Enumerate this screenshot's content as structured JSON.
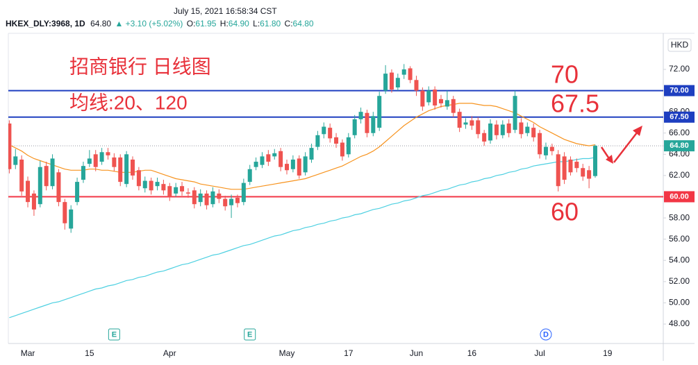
{
  "header": {
    "timestamp": "July 15, 2021 16:58:34 CST",
    "symbol": "HKEX_DLY:3968, 1D",
    "last": "64.80",
    "change": "▲ +3.10 (+5.02%)",
    "ohlc": [
      {
        "label": "O:",
        "value": "61.95"
      },
      {
        "label": "H:",
        "value": "64.90"
      },
      {
        "label": "L:",
        "value": "61.80"
      },
      {
        "label": "C:",
        "value": "64.80"
      }
    ]
  },
  "chart_data": {
    "type": "candlestick",
    "currency": "HKD",
    "categories": [
      null,
      null,
      null,
      "Mar",
      null,
      null,
      null,
      null,
      null,
      null,
      null,
      null,
      null,
      "15",
      null,
      null,
      null,
      null,
      null,
      null,
      null,
      null,
      null,
      null,
      null,
      null,
      "Apr",
      null,
      null,
      null,
      null,
      null,
      null,
      null,
      null,
      null,
      null,
      null,
      null,
      null,
      null,
      null,
      null,
      null,
      null,
      "May",
      null,
      null,
      null,
      null,
      null,
      null,
      null,
      null,
      null,
      "17",
      null,
      null,
      null,
      null,
      null,
      null,
      null,
      null,
      null,
      null,
      "Jun",
      null,
      null,
      null,
      null,
      null,
      null,
      null,
      null,
      "16",
      null,
      null,
      null,
      null,
      null,
      null,
      null,
      null,
      null,
      null,
      "Jul",
      null,
      null,
      null,
      null,
      null,
      null,
      null,
      null,
      null,
      null,
      "19"
    ],
    "open": [
      66.9,
      63.0,
      63.5,
      61.5,
      60.3,
      59.3,
      62.9,
      61.0,
      62.3,
      59.5,
      57.0,
      59.5,
      61.6,
      63.1,
      64.0,
      63.3,
      64.2,
      63.7,
      63.7,
      61.2,
      63.5,
      62.5,
      60.8,
      61.5,
      61.0,
      61.2,
      61.0,
      60.3,
      61.0,
      60.4,
      60.6,
      59.5,
      60.3,
      59.3,
      60.3,
      59.8,
      59.2,
      59.9,
      59.5,
      61.4,
      62.8,
      63.0,
      64.0,
      63.8,
      64.3,
      63.1,
      62.6,
      63.6,
      62.3,
      63.5,
      64.7,
      65.9,
      66.5,
      65.6,
      65.1,
      64.0,
      65.8,
      67.3,
      67.9,
      66.0,
      66.5,
      70.0,
      71.7,
      70.3,
      71.5,
      72.1,
      71.0,
      70.0,
      68.9,
      70.1,
      69.2,
      68.5,
      69.2,
      68.0,
      66.8,
      67.2,
      67.2,
      66.0,
      65.3,
      66.8,
      65.8,
      66.9,
      66.3,
      67.0,
      66.0,
      66.5,
      66.0,
      63.9,
      64.7,
      64.0,
      63.8,
      63.5,
      63.3,
      62.7,
      62.5,
      61.95,
      null,
      null
    ],
    "high": [
      67.2,
      64.5,
      63.9,
      61.9,
      60.6,
      63.4,
      63.3,
      64.0,
      62.6,
      59.8,
      59.2,
      61.8,
      63.3,
      64.4,
      64.4,
      64.6,
      64.6,
      64.1,
      64.0,
      64.3,
      63.8,
      62.8,
      61.9,
      61.8,
      61.8,
      61.6,
      61.3,
      61.3,
      61.4,
      60.8,
      60.9,
      60.7,
      60.6,
      60.9,
      60.7,
      60.1,
      60.2,
      60.2,
      61.7,
      63.0,
      63.7,
      64.2,
      64.4,
      64.5,
      64.6,
      63.5,
      63.9,
      63.9,
      64.2,
      65.0,
      66.2,
      67.0,
      66.9,
      66.0,
      65.4,
      66.0,
      67.7,
      68.4,
      68.2,
      68.0,
      69.9,
      72.4,
      72.0,
      71.6,
      72.5,
      72.3,
      71.4,
      70.3,
      70.4,
      70.4,
      69.6,
      70.0,
      69.5,
      68.3,
      67.4,
      67.6,
      67.5,
      66.3,
      67.3,
      67.2,
      67.2,
      67.3,
      70.0,
      67.4,
      67.0,
      66.9,
      66.3,
      65.1,
      65.0,
      64.4,
      64.2,
      63.8,
      63.6,
      63.1,
      62.9,
      64.9,
      null,
      null
    ],
    "low": [
      62.2,
      62.6,
      60.1,
      59.0,
      58.2,
      59.0,
      60.6,
      60.7,
      59.1,
      56.9,
      56.6,
      59.2,
      61.3,
      62.8,
      62.4,
      63.0,
      63.5,
      62.4,
      61.0,
      60.9,
      61.6,
      60.6,
      60.4,
      60.2,
      60.6,
      60.2,
      59.6,
      60.0,
      60.1,
      59.9,
      58.9,
      59.1,
      58.8,
      59.0,
      59.4,
      58.7,
      58.0,
      59.0,
      59.2,
      61.1,
      62.5,
      62.7,
      62.9,
      63.5,
      62.4,
      62.1,
      62.3,
      61.7,
      62.0,
      63.2,
      64.4,
      65.5,
      65.1,
      64.6,
      63.4,
      63.7,
      65.5,
      66.9,
      65.6,
      65.7,
      66.2,
      69.7,
      69.8,
      70.0,
      71.1,
      70.7,
      69.5,
      68.1,
      68.6,
      68.2,
      68.4,
      68.2,
      67.5,
      66.1,
      66.4,
      66.3,
      65.5,
      64.8,
      65.0,
      65.4,
      65.5,
      65.6,
      66.0,
      65.5,
      65.7,
      65.2,
      63.6,
      63.5,
      63.9,
      60.5,
      61.2,
      62.0,
      62.3,
      61.5,
      60.8,
      61.8,
      null,
      null
    ],
    "close": [
      62.6,
      63.8,
      60.5,
      59.5,
      58.8,
      62.8,
      61.0,
      63.6,
      59.5,
      57.5,
      58.8,
      61.4,
      62.9,
      63.6,
      62.8,
      64.2,
      63.9,
      62.8,
      61.4,
      64.0,
      62.0,
      61.0,
      61.5,
      60.6,
      61.4,
      60.6,
      60.0,
      60.9,
      60.5,
      60.3,
      59.3,
      60.3,
      59.2,
      60.5,
      59.8,
      59.1,
      59.8,
      59.4,
      61.3,
      62.6,
      63.3,
      63.8,
      63.3,
      64.1,
      62.8,
      62.5,
      63.5,
      62.0,
      63.8,
      64.6,
      65.8,
      66.6,
      65.5,
      65.0,
      63.8,
      65.6,
      67.3,
      68.0,
      66.0,
      67.6,
      69.5,
      71.6,
      70.1,
      71.2,
      72.0,
      71.0,
      70.0,
      68.5,
      70.0,
      68.6,
      68.8,
      69.1,
      67.9,
      66.5,
      67.0,
      66.7,
      65.9,
      65.2,
      66.9,
      65.8,
      66.8,
      66.0,
      69.5,
      65.9,
      66.6,
      65.6,
      64.0,
      64.7,
      64.3,
      61.0,
      61.6,
      62.3,
      62.7,
      61.9,
      61.7,
      64.8,
      null,
      null
    ],
    "up_color": "#26a69a",
    "down_color": "#ef5350",
    "series": [
      {
        "color": "#f7931e",
        "values": [
          64.9,
          64.6,
          64.3,
          63.9,
          63.6,
          63.4,
          63.2,
          63.0,
          62.8,
          62.6,
          62.5,
          62.5,
          62.5,
          62.6,
          62.6,
          62.5,
          62.5,
          62.4,
          62.3,
          62.3,
          62.3,
          62.4,
          62.5,
          62.5,
          62.3,
          62.1,
          61.9,
          61.7,
          61.6,
          61.5,
          61.4,
          61.2,
          61.1,
          61.0,
          60.9,
          60.8,
          60.7,
          60.7,
          60.7,
          60.8,
          60.9,
          61.0,
          61.1,
          61.2,
          61.3,
          61.4,
          61.5,
          61.6,
          61.7,
          61.9,
          62.1,
          62.3,
          62.5,
          62.7,
          62.9,
          63.2,
          63.5,
          63.8,
          64.0,
          64.3,
          64.7,
          65.2,
          65.7,
          66.2,
          66.7,
          67.1,
          67.5,
          67.8,
          68.1,
          68.3,
          68.5,
          68.6,
          68.7,
          68.8,
          68.8,
          68.8,
          68.7,
          68.6,
          68.6,
          68.5,
          68.3,
          68.1,
          67.9,
          67.6,
          67.3,
          67.0,
          66.6,
          66.3,
          66.0,
          65.7,
          65.4,
          65.2,
          65.0,
          64.9,
          64.8,
          64.9,
          null,
          null
        ]
      },
      {
        "color": "#4dd0e1",
        "values": [
          48.6,
          48.8,
          49.0,
          49.2,
          49.4,
          49.6,
          49.8,
          50.0,
          50.1,
          50.3,
          50.5,
          50.7,
          50.9,
          51.1,
          51.3,
          51.4,
          51.6,
          51.7,
          51.9,
          52.1,
          52.2,
          52.4,
          52.5,
          52.7,
          52.9,
          53.0,
          53.2,
          53.4,
          53.6,
          53.7,
          53.9,
          54.1,
          54.3,
          54.5,
          54.6,
          54.8,
          55.0,
          55.2,
          55.4,
          55.5,
          55.7,
          55.9,
          56.1,
          56.3,
          56.4,
          56.6,
          56.8,
          56.9,
          57.1,
          57.2,
          57.4,
          57.5,
          57.7,
          57.8,
          58.0,
          58.1,
          58.3,
          58.4,
          58.6,
          58.8,
          58.9,
          59.1,
          59.3,
          59.4,
          59.6,
          59.7,
          59.9,
          60.1,
          60.2,
          60.4,
          60.6,
          60.7,
          60.9,
          61.1,
          61.2,
          61.4,
          61.5,
          61.7,
          61.8,
          62.0,
          62.1,
          62.3,
          62.4,
          62.6,
          62.7,
          62.9,
          63.0,
          63.1,
          63.2,
          63.3,
          63.3,
          63.4,
          63.5,
          63.6,
          63.6,
          63.7,
          null,
          null
        ]
      }
    ],
    "ylim": [
      46.17,
      75.4
    ],
    "yticks": [
      {
        "value": 48,
        "label": "48.00"
      },
      {
        "value": 50,
        "label": "50.00"
      },
      {
        "value": 52,
        "label": "52.00"
      },
      {
        "value": 54,
        "label": "54.00"
      },
      {
        "value": 56,
        "label": "56.00"
      },
      {
        "value": 58,
        "label": "58.00"
      },
      {
        "value": 60,
        "label": "60.00"
      },
      {
        "value": 62,
        "label": "62.00"
      },
      {
        "value": 64,
        "label": "64.00"
      },
      {
        "value": 66,
        "label": "66.00"
      },
      {
        "value": 68,
        "label": "68.00"
      },
      {
        "value": 70,
        "label": "70.00"
      },
      {
        "value": 72,
        "label": "72.00"
      }
    ],
    "grid": false,
    "levels": [
      {
        "value": 70,
        "label": "70.00",
        "color": "#1e3fc0"
      },
      {
        "value": 67.5,
        "label": "67.50",
        "color": "#1e3fc0"
      },
      {
        "value": 60,
        "label": "60.00",
        "color": "#f23645"
      }
    ],
    "last_price": {
      "value": 64.8,
      "label": "64.80",
      "color": "#26a69a"
    },
    "events": [
      {
        "index": 17,
        "label": "E",
        "color": "#26a69a"
      },
      {
        "index": 39,
        "label": "E",
        "color": "#26a69a"
      },
      {
        "index": 87,
        "label": "D",
        "color": "#2962ff"
      }
    ],
    "annotations": [
      {
        "text": "招商银行 日线图",
        "size": 28
      },
      {
        "text": "均线:20、120",
        "size": 28
      },
      {
        "text": "70",
        "size": 36
      },
      {
        "text": "67.5",
        "size": 36
      },
      {
        "text": "60",
        "size": 36
      }
    ]
  }
}
